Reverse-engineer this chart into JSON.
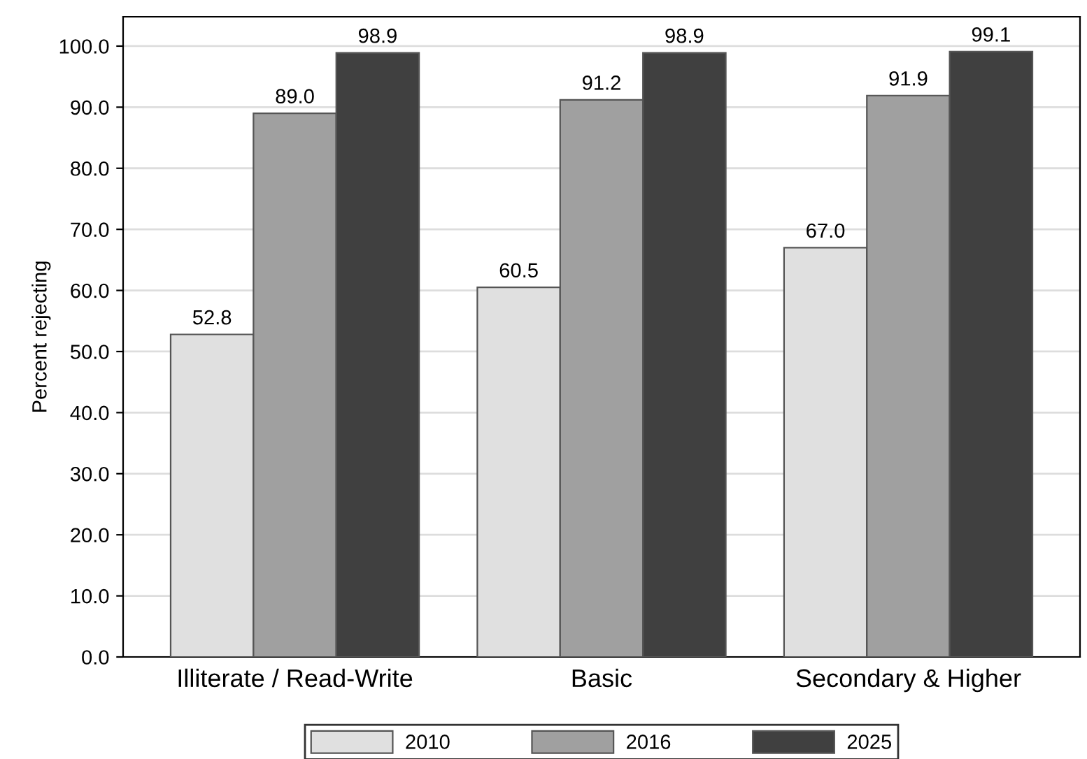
{
  "chart_data": {
    "type": "bar",
    "ylabel": "Percent rejecting",
    "categories": [
      "Illiterate / Read-Write",
      "Basic",
      "Secondary & Higher"
    ],
    "series": [
      {
        "name": "2010",
        "color": "#e0e0e0",
        "values": [
          52.8,
          60.5,
          67.0
        ],
        "value_labels": [
          "52.8",
          "60.5",
          "67.0"
        ]
      },
      {
        "name": "2016",
        "color": "#a0a0a0",
        "values": [
          89.0,
          91.2,
          91.9
        ],
        "value_labels": [
          "89.0",
          "91.2",
          "91.9"
        ]
      },
      {
        "name": "2025",
        "color": "#404040",
        "values": [
          98.9,
          98.9,
          99.1
        ],
        "value_labels": [
          "98.9",
          "98.9",
          "99.1"
        ]
      }
    ],
    "ylim": [
      0,
      104.8
    ],
    "yticks": [
      {
        "value": 0,
        "label": "0.0"
      },
      {
        "value": 10,
        "label": "10.0"
      },
      {
        "value": 20,
        "label": "20.0"
      },
      {
        "value": 30,
        "label": "30.0"
      },
      {
        "value": 40,
        "label": "40.0"
      },
      {
        "value": 50,
        "label": "50.0"
      },
      {
        "value": 60,
        "label": "60.0"
      },
      {
        "value": 70,
        "label": "70.0"
      },
      {
        "value": 80,
        "label": "80.0"
      },
      {
        "value": 90,
        "label": "90.0"
      },
      {
        "value": 100,
        "label": "100.0"
      }
    ],
    "grid": "y",
    "legend": "bottom",
    "data_labels": true
  }
}
